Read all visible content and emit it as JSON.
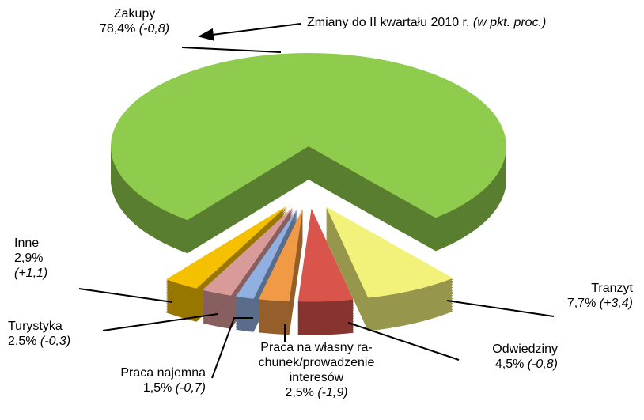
{
  "chart_data": {
    "type": "pie3d",
    "annotation": "Zmiany do II kwartału 2010 r.",
    "annotation_note": "(w pkt. proc.)",
    "categories": [
      "Zakupy",
      "Tranzyt",
      "Odwiedziny",
      "Praca na własny ra-\nchunek/prowadzenie\ninteresów",
      "Praca najemna",
      "Turystyka",
      "Inne"
    ],
    "values": [
      78.4,
      7.7,
      4.5,
      2.5,
      1.5,
      2.5,
      2.9
    ],
    "value_labels": [
      "78,4%",
      "7,7%",
      "4,5%",
      "2,5%",
      "1,5%",
      "2,5%",
      "2,9%"
    ],
    "changes": [
      -0.8,
      3.4,
      -0.8,
      -1.9,
      -0.7,
      -0.3,
      1.1
    ],
    "change_labels": [
      "(-0,8)",
      "(+3,4)",
      "(-0,8)",
      "(-1,9)",
      "(-0,7)",
      "(-0,3)",
      "(+1,1)"
    ],
    "colors": [
      "#8fcc4e",
      "#f2f27a",
      "#d9544a",
      "#f09a45",
      "#8fb0e0",
      "#d99a9a",
      "#f5c000"
    ]
  }
}
